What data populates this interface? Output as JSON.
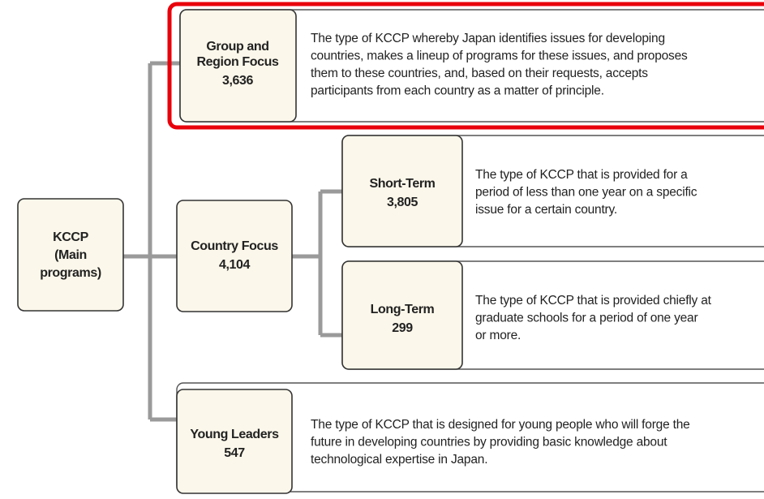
{
  "nodes": [
    {
      "label": [
        "KCCP",
        "(Main",
        "programs)"
      ]
    },
    {
      "label": [
        "Group and",
        "Region Focus"
      ],
      "count": "3,636",
      "description": [
        "The type of KCCP whereby Japan identifies issues for developing",
        "countries, makes a lineup of programs for these issues, and proposes",
        "them to these countries, and, based on their requests, accepts",
        "participants from each country as a matter of principle."
      ]
    },
    {
      "label": [
        "Country Focus"
      ],
      "count": "4,104"
    },
    {
      "label": [
        "Short-Term"
      ],
      "count": "3,805",
      "description": [
        "The type of KCCP that is provided for a",
        "period of less than one year on a specific",
        "issue for a certain country."
      ]
    },
    {
      "label": [
        "Long-Term"
      ],
      "count": "299",
      "description": [
        "The type of KCCP that is provided chiefly at",
        "graduate schools for a period of one year",
        "or more."
      ]
    },
    {
      "label": [
        "Young Leaders"
      ],
      "count": "547",
      "description": [
        "The type of KCCP that is designed for young people who will forge the",
        "future in developing countries by providing basic knowledge about",
        "technological expertise in Japan."
      ]
    }
  ]
}
